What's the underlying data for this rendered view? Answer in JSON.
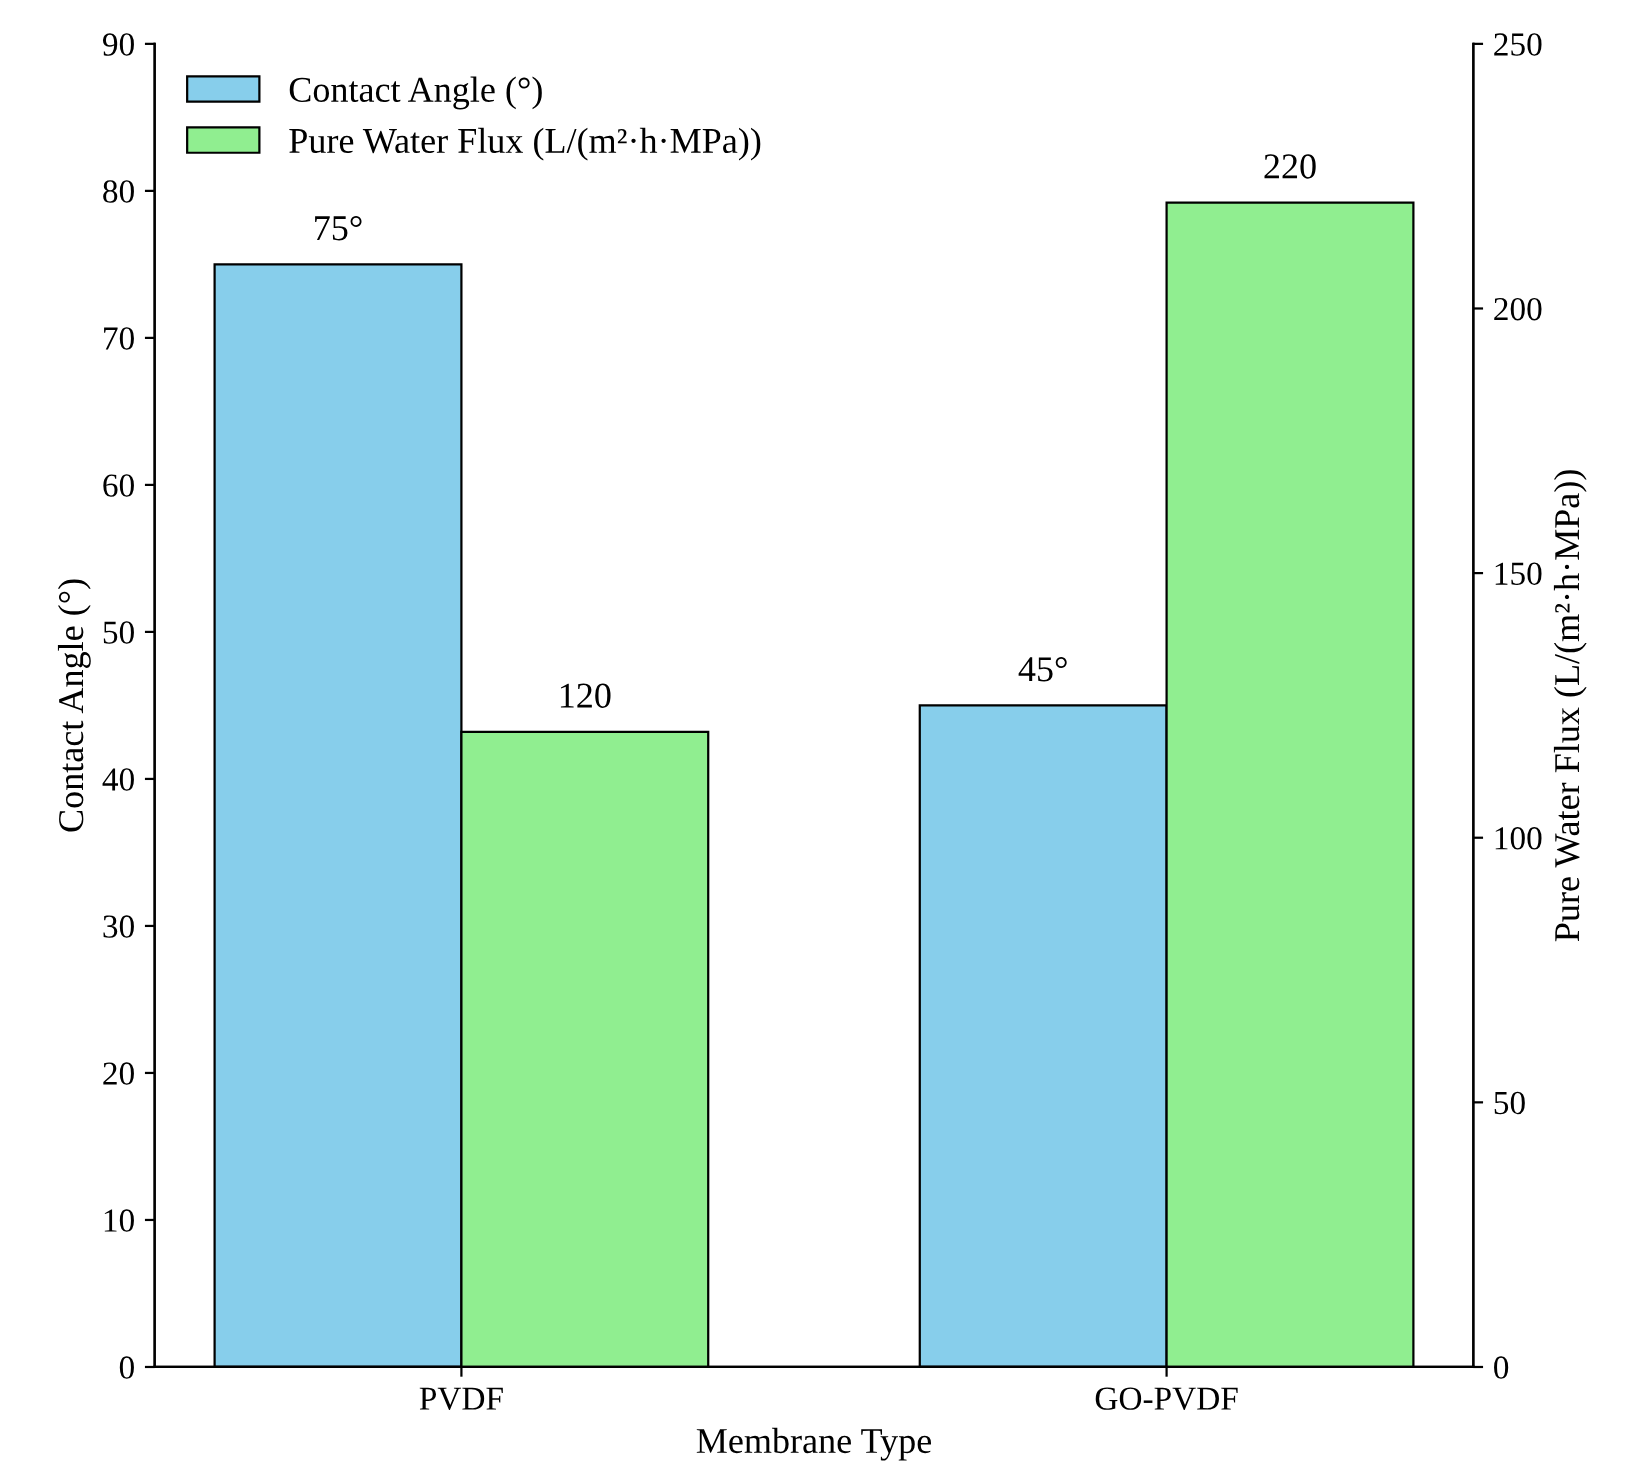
{
  "chart_data": {
    "type": "bar",
    "categories": [
      "PVDF",
      "GO-PVDF"
    ],
    "xlabel": "Membrane Type",
    "ylabel": "Contact Angle (°)",
    "y2label": "Pure Water Flux (L/(m²·h·MPa))",
    "series": [
      {
        "name": "Contact Angle (°)",
        "color": "#87ceeb",
        "values": [
          75,
          45
        ],
        "value_labels": [
          "75°",
          "45°"
        ]
      },
      {
        "name": "Pure Water Flux (L/(m²·h·MPa))",
        "color": "#90ee90",
        "values": [
          120,
          220
        ],
        "axis": "y2",
        "value_labels": [
          "120",
          "220"
        ]
      }
    ],
    "ylim": [
      0,
      90
    ],
    "yticks": [
      0,
      10,
      20,
      30,
      40,
      50,
      60,
      70,
      80,
      90
    ],
    "y2lim": [
      0,
      250
    ],
    "y2ticks": [
      0,
      50,
      100,
      150,
      200,
      250
    ],
    "legend": "top left",
    "grid": false
  }
}
